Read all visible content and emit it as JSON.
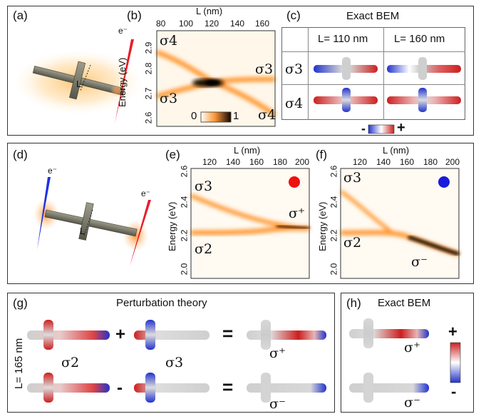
{
  "panels": {
    "a": "(a)",
    "b": "(b)",
    "c": "(c)",
    "d": "(d)",
    "e": "(e)",
    "f": "(f)",
    "g": "(g)",
    "h": "(h)"
  },
  "electron": "e⁻",
  "length_marker": "L",
  "b": {
    "xlabel": "L (nm)",
    "ylabel": "Energy (eV)",
    "xticks": [
      "80",
      "100",
      "120",
      "140",
      "160"
    ],
    "yticks": [
      "2.9",
      "2.8",
      "2.7",
      "2.6"
    ],
    "mode_labels": {
      "s4_top": "σ4",
      "s3_right": "σ3",
      "s3_left": "σ3",
      "s4_bottom": "σ4"
    },
    "colorbar": {
      "min": "0",
      "max": "1"
    }
  },
  "c": {
    "title": "Exact BEM",
    "columns": [
      "L= 110 nm",
      "L= 160 nm"
    ],
    "rows": [
      "σ3",
      "σ4"
    ],
    "colorbar": {
      "neg": "-",
      "pos": "+"
    }
  },
  "e": {
    "xlabel": "L (nm)",
    "ylabel": "Energy (eV)",
    "xticks": [
      "120",
      "140",
      "160",
      "180",
      "200"
    ],
    "yticks": [
      "2.6",
      "2.4",
      "2.2",
      "2.0"
    ],
    "mode_labels": {
      "s3": "σ3",
      "s2": "σ2",
      "splus": "σ⁺"
    },
    "dot_color": "#ee1111"
  },
  "f": {
    "xlabel": "L (nm)",
    "ylabel": "Energy (eV)",
    "xticks": [
      "120",
      "140",
      "160",
      "180",
      "200"
    ],
    "yticks": [
      "2.6",
      "2.4",
      "2.2",
      "2.0"
    ],
    "mode_labels": {
      "s3": "σ3",
      "s2": "σ2",
      "sminus": "σ⁻"
    },
    "dot_color": "#1a1add"
  },
  "g": {
    "title": "Perturbation theory",
    "side_label": "L= 165 nm",
    "row1": {
      "a": "σ2",
      "op": "+",
      "b": "σ3",
      "eq": "=",
      "r": "σ⁺"
    },
    "row2": {
      "op": "-",
      "eq": "=",
      "r": "σ⁻"
    }
  },
  "h": {
    "title": "Exact BEM",
    "plus_label": "σ⁺",
    "minus_label": "σ⁻",
    "colorbar": {
      "pos": "+",
      "neg": "-"
    }
  },
  "colors": {
    "heat": "#ff8c1a",
    "heat_dark": "#1a0800",
    "pos": "#cc1f1f",
    "neg": "#1f2fcc",
    "neutral": "#cfcfcf"
  }
}
